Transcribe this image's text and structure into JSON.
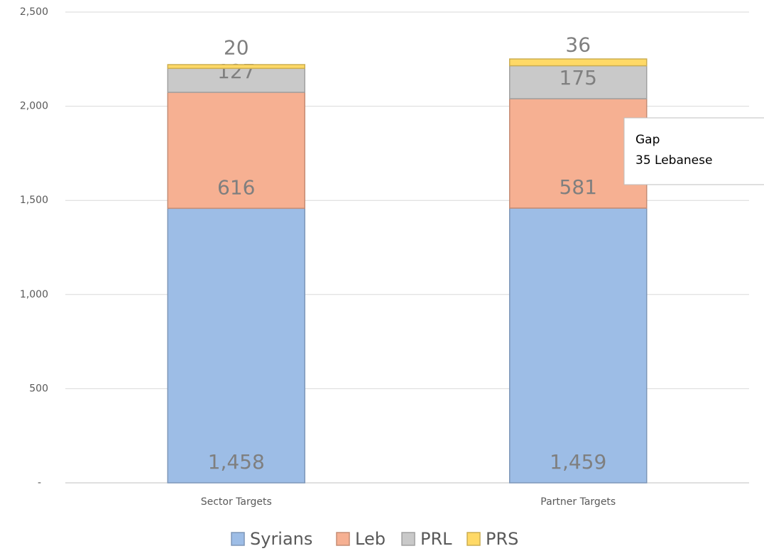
{
  "chart_data": {
    "type": "stacked_bar",
    "categories": [
      "Sector Targets",
      "Partner Targets"
    ],
    "series": [
      {
        "name": "Syrians",
        "color": "#9dbde6",
        "values": [
          1458,
          1459
        ],
        "value_labels": [
          "1,458",
          "1,459"
        ]
      },
      {
        "name": "Leb",
        "color": "#f6b092",
        "values": [
          616,
          581
        ]
      },
      {
        "name": "PRL",
        "color": "#c9c9c9",
        "values": [
          127,
          175
        ]
      },
      {
        "name": "PRS",
        "color": "#ffd966",
        "values": [
          20,
          36
        ]
      }
    ],
    "ylim": [
      0,
      2500
    ],
    "yticks": [
      {
        "value": 0,
        "label": "-"
      },
      500,
      {
        "value": 1000,
        "label": "1,000"
      },
      {
        "value": 1500,
        "label": "1,500"
      },
      {
        "value": 2000,
        "label": "2,000"
      },
      {
        "value": 2500,
        "label": "2,500"
      }
    ],
    "grid": true,
    "legend": "bottom",
    "annotation": [
      "Gap",
      "35 Lebanese"
    ]
  }
}
